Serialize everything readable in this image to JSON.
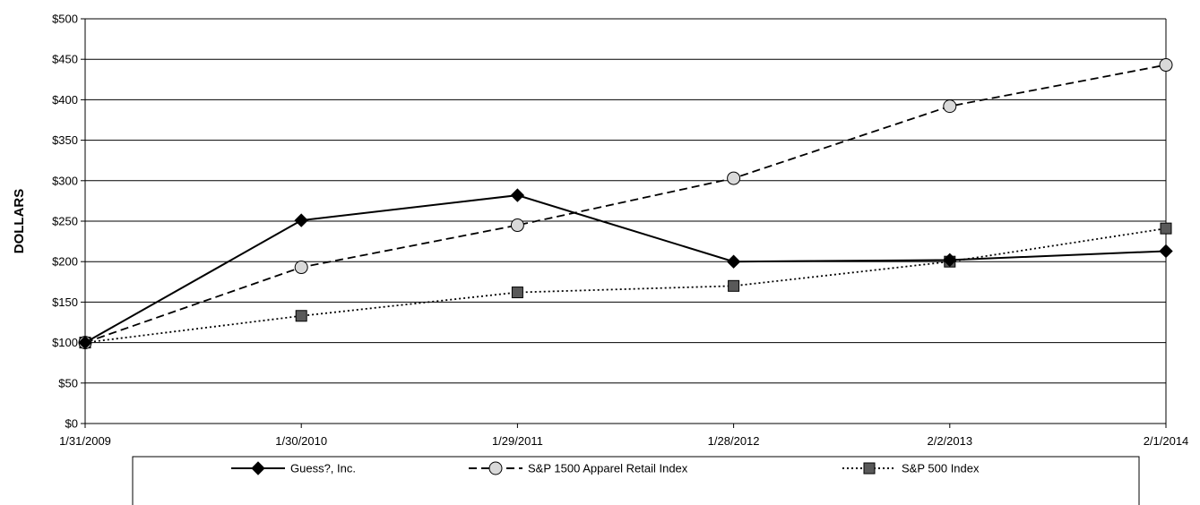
{
  "chart_data": {
    "type": "line",
    "x": [
      "1/31/2009",
      "1/30/2010",
      "1/29/2011",
      "1/28/2012",
      "2/2/2013",
      "2/1/2014"
    ],
    "series": [
      {
        "name": "Guess?, Inc.",
        "values": [
          100,
          251,
          282,
          200,
          202,
          213
        ],
        "line_style": "solid",
        "marker": "diamond",
        "color": "#000000"
      },
      {
        "name": "S&P 1500 Apparel Retail Index",
        "values": [
          100,
          193,
          245,
          303,
          392,
          443
        ],
        "line_style": "dashed",
        "marker": "circle",
        "color": "#000000"
      },
      {
        "name": "S&P 500 Index",
        "values": [
          100,
          133,
          162,
          170,
          200,
          241
        ],
        "line_style": "dotted",
        "marker": "square",
        "color": "#555555"
      }
    ],
    "ylabel": "DOLLARS",
    "xlabel": "",
    "ylim": [
      0,
      500
    ],
    "y_ticks": [
      "$0",
      "$50",
      "$100",
      "$150",
      "$200",
      "$250",
      "$300",
      "$350",
      "$400",
      "$450",
      "$500"
    ],
    "grid": "horizontal",
    "legend": "bottom"
  }
}
